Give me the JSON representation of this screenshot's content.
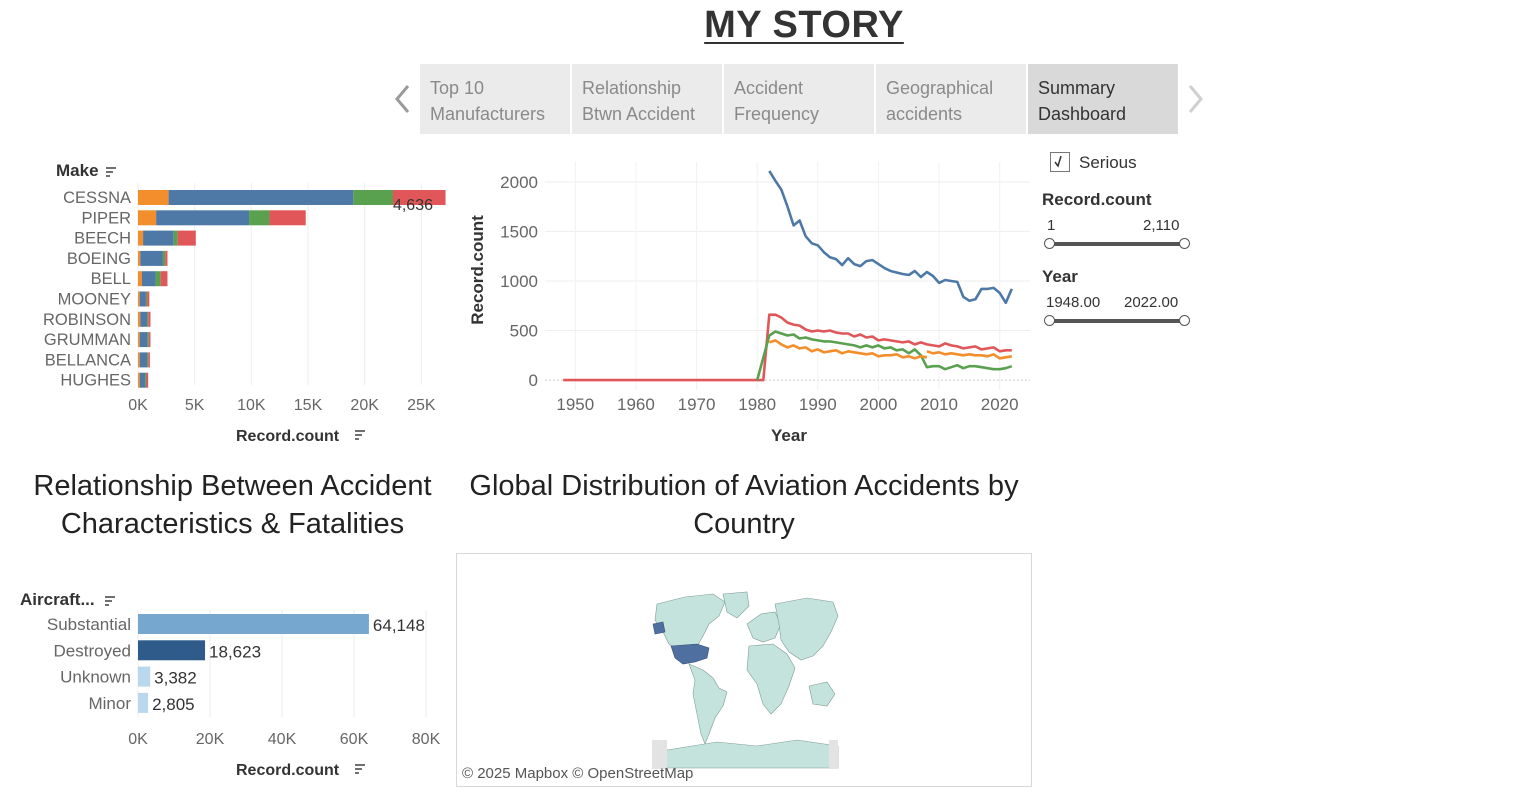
{
  "story": {
    "title": "MY STORY",
    "tabs": [
      {
        "line1": "Top 10",
        "line2": "Manufacturers",
        "active": false
      },
      {
        "line1": "Relationship",
        "line2": "Btwn Accident",
        "active": false
      },
      {
        "line1": "Accident",
        "line2": "Frequency",
        "active": false
      },
      {
        "line1": "Geographical",
        "line2": "accidents",
        "active": false
      },
      {
        "line1": "Summary",
        "line2": "Dashboard",
        "active": true
      }
    ]
  },
  "filters": {
    "serious_label": "Serious",
    "serious_checked": true,
    "record_count": {
      "label": "Record.count",
      "min": "1",
      "max": "2,110"
    },
    "year": {
      "label": "Year",
      "min": "1948.00",
      "max": "2022.00"
    }
  },
  "colors": {
    "blue": "#4e79a7",
    "orange": "#f28e2b",
    "green": "#59a14f",
    "red": "#e15759",
    "damage_substantial": "#76a8cf",
    "damage_destroyed": "#2e5b8a",
    "damage_light": "#b9d8ee",
    "map_land": "#c4e3dc",
    "map_us": "#4e6fa0"
  },
  "chart_data": [
    {
      "type": "bar",
      "orientation": "horizontal",
      "stacked": true,
      "header": "Make",
      "xlabel": "Record.count",
      "xlim": [
        0,
        27000
      ],
      "xticks": [
        "0K",
        "5K",
        "10K",
        "15K",
        "20K",
        "25K"
      ],
      "xtick_values": [
        0,
        5000,
        10000,
        15000,
        20000,
        25000
      ],
      "categories": [
        "CESSNA",
        "PIPER",
        "BEECH",
        "BOEING",
        "BELL",
        "MOONEY",
        "ROBINSON",
        "GRUMMAN",
        "BELLANCA",
        "HUGHES"
      ],
      "series": [
        {
          "color": "#f28e2b",
          "values": [
            2700,
            1600,
            450,
            200,
            350,
            150,
            200,
            150,
            150,
            150
          ]
        },
        {
          "color": "#4e79a7",
          "values": [
            16300,
            8200,
            2700,
            2000,
            1200,
            550,
            600,
            700,
            650,
            500
          ]
        },
        {
          "color": "#59a14f",
          "values": [
            3500,
            1800,
            350,
            200,
            450,
            100,
            100,
            100,
            100,
            100
          ]
        },
        {
          "color": "#e15759",
          "values": [
            4636,
            3200,
            1600,
            200,
            600,
            200,
            200,
            150,
            150,
            150
          ]
        }
      ],
      "data_labels": [
        {
          "category": "CESSNA",
          "text": "4,636"
        }
      ]
    },
    {
      "type": "line",
      "xlabel": "Year",
      "ylabel": "Record.count",
      "xlim": [
        1945,
        2025
      ],
      "ylim": [
        -100,
        2200
      ],
      "xticks": [
        1950,
        1960,
        1970,
        1980,
        1990,
        2000,
        2010,
        2020
      ],
      "yticks": [
        0,
        500,
        1000,
        1500,
        2000
      ],
      "series": [
        {
          "color": "#4e79a7",
          "x": [
            1982,
            1983,
            1984,
            1985,
            1986,
            1987,
            1988,
            1989,
            1990,
            1991,
            1992,
            1993,
            1994,
            1995,
            1996,
            1997,
            1998,
            1999,
            2000,
            2001,
            2002,
            2003,
            2004,
            2005,
            2006,
            2007,
            2008,
            2009,
            2010,
            2011,
            2012,
            2013,
            2014,
            2015,
            2016,
            2017,
            2018,
            2019,
            2020,
            2021,
            2022
          ],
          "y": [
            2110,
            2010,
            1920,
            1750,
            1560,
            1610,
            1450,
            1380,
            1360,
            1290,
            1240,
            1220,
            1160,
            1230,
            1170,
            1150,
            1200,
            1210,
            1170,
            1130,
            1100,
            1085,
            1070,
            1060,
            1100,
            1040,
            1090,
            1050,
            980,
            1010,
            1000,
            990,
            840,
            800,
            815,
            920,
            920,
            930,
            880,
            780,
            920
          ]
        },
        {
          "color": "#e15759",
          "x": [
            1948,
            1950,
            1955,
            1960,
            1965,
            1970,
            1975,
            1979,
            1980,
            1981,
            1982,
            1983,
            1984,
            1985,
            1986,
            1987,
            1988,
            1989,
            1990,
            1991,
            1992,
            1993,
            1994,
            1995,
            1996,
            1997,
            1998,
            1999,
            2000,
            2001,
            2002,
            2003,
            2004,
            2005,
            2006,
            2007,
            2008,
            2009,
            2010,
            2011,
            2012,
            2013,
            2014,
            2015,
            2016,
            2017,
            2018,
            2019,
            2020,
            2021,
            2022
          ],
          "y": [
            0,
            0,
            0,
            0,
            0,
            0,
            0,
            0,
            0,
            0,
            660,
            660,
            630,
            580,
            560,
            550,
            510,
            490,
            500,
            490,
            500,
            480,
            470,
            470,
            440,
            460,
            430,
            440,
            400,
            410,
            400,
            390,
            380,
            390,
            360,
            380,
            360,
            350,
            340,
            370,
            350,
            340,
            320,
            330,
            340,
            310,
            320,
            330,
            290,
            300,
            300
          ]
        },
        {
          "color": "#f28e2b",
          "x": [
            2008,
            2009,
            2010,
            2011,
            2012,
            2013,
            2014,
            2015,
            2016,
            2017,
            2018,
            2019,
            2020,
            2021,
            2022
          ],
          "y": [
            290,
            270,
            280,
            260,
            270,
            260,
            250,
            260,
            250,
            250,
            240,
            260,
            220,
            230,
            240
          ]
        },
        {
          "color": "#59a14f",
          "x": [
            1980,
            1982,
            1983,
            1984,
            1985,
            1986,
            1987,
            1988,
            1989,
            1990,
            1991,
            1992,
            1993,
            1994,
            1995,
            1996,
            1997,
            1998,
            1999,
            2000,
            2001,
            2002,
            2003,
            2004,
            2005,
            2006,
            2007,
            2008,
            2009,
            2010,
            2011,
            2012,
            2013,
            2014,
            2015,
            2016,
            2017,
            2018,
            2019,
            2020,
            2021,
            2022
          ],
          "y": [
            0,
            450,
            490,
            470,
            450,
            460,
            420,
            430,
            410,
            400,
            390,
            390,
            380,
            370,
            360,
            350,
            330,
            350,
            330,
            350,
            320,
            330,
            300,
            310,
            270,
            310,
            250,
            130,
            140,
            140,
            110,
            130,
            150,
            120,
            140,
            140,
            130,
            120,
            110,
            110,
            120,
            140
          ]
        },
        {
          "color": "#f28e2b",
          "x": [
            1982,
            1983,
            1984,
            1985,
            1986,
            1987,
            1988,
            1989,
            1990,
            1991,
            1992,
            1993,
            1994,
            1995,
            1996,
            1997,
            1998,
            1999,
            2000,
            2001,
            2002,
            2003,
            2004,
            2005,
            2006,
            2007,
            2008
          ],
          "y": [
            380,
            400,
            360,
            330,
            350,
            320,
            330,
            290,
            310,
            280,
            290,
            300,
            270,
            290,
            280,
            270,
            260,
            270,
            240,
            250,
            250,
            260,
            230,
            240,
            220,
            240,
            230
          ]
        }
      ]
    },
    {
      "type": "bar",
      "orientation": "horizontal",
      "title": "Relationship Between Accident Characteristics & Fatalities",
      "header": "Aircraft...",
      "xlabel": "Record.count",
      "xlim": [
        0,
        85000
      ],
      "xticks": [
        "0K",
        "20K",
        "40K",
        "60K",
        "80K"
      ],
      "xtick_values": [
        0,
        20000,
        40000,
        60000,
        80000
      ],
      "categories": [
        "Substantial",
        "Destroyed",
        "Unknown",
        "Minor"
      ],
      "values": [
        64148,
        18623,
        3382,
        2805
      ],
      "labels": [
        "64,148",
        "18,623",
        "3,382",
        "2,805"
      ],
      "colors": [
        "#76a8cf",
        "#2e5b8a",
        "#b9d8ee",
        "#b9d8ee"
      ]
    }
  ],
  "map": {
    "title": "Global Distribution of Aviation Accidents by Country",
    "credit": "© 2025 Mapbox © OpenStreetMap"
  }
}
